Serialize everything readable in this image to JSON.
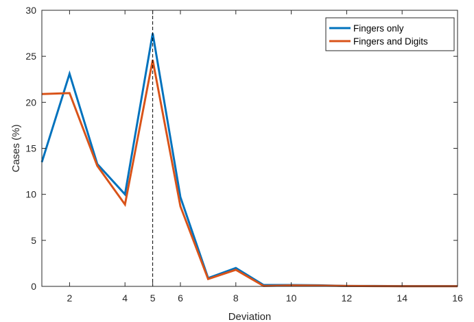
{
  "chart_data": {
    "type": "line",
    "xlabel": "Deviation",
    "ylabel": "Cases (%)",
    "xlim": [
      1,
      16
    ],
    "ylim": [
      0,
      30
    ],
    "x_ticks": [
      2,
      4,
      5,
      6,
      8,
      10,
      12,
      14,
      16
    ],
    "y_ticks": [
      0,
      5,
      10,
      15,
      20,
      25,
      30
    ],
    "x_tick_labels": [
      "2",
      "4",
      "5",
      "6",
      "8",
      "10",
      "12",
      "14",
      "16"
    ],
    "y_tick_labels": [
      "0",
      "5",
      "10",
      "15",
      "20",
      "25",
      "30"
    ],
    "grid": false,
    "legend_position": "top-right",
    "reference_line": {
      "x": 5,
      "style": "dashed",
      "color": "#000000"
    },
    "x": [
      1,
      2,
      3,
      4,
      5,
      6,
      7,
      8,
      9,
      10,
      11,
      12,
      13,
      14,
      15,
      16
    ],
    "series": [
      {
        "name": "Fingers only",
        "color": "#0072BD",
        "values": [
          13.5,
          23.1,
          13.3,
          10.0,
          27.5,
          9.7,
          0.9,
          2.0,
          0.15,
          0.15,
          0.12,
          0.05,
          0.05,
          0.03,
          0.03,
          0.03
        ]
      },
      {
        "name": "Fingers and Digits",
        "color": "#D95319",
        "values": [
          20.9,
          21.0,
          13.1,
          8.9,
          24.6,
          8.7,
          0.8,
          1.8,
          0.05,
          0.1,
          0.08,
          0.05,
          0.03,
          0.02,
          0.02,
          0.02
        ]
      }
    ]
  }
}
